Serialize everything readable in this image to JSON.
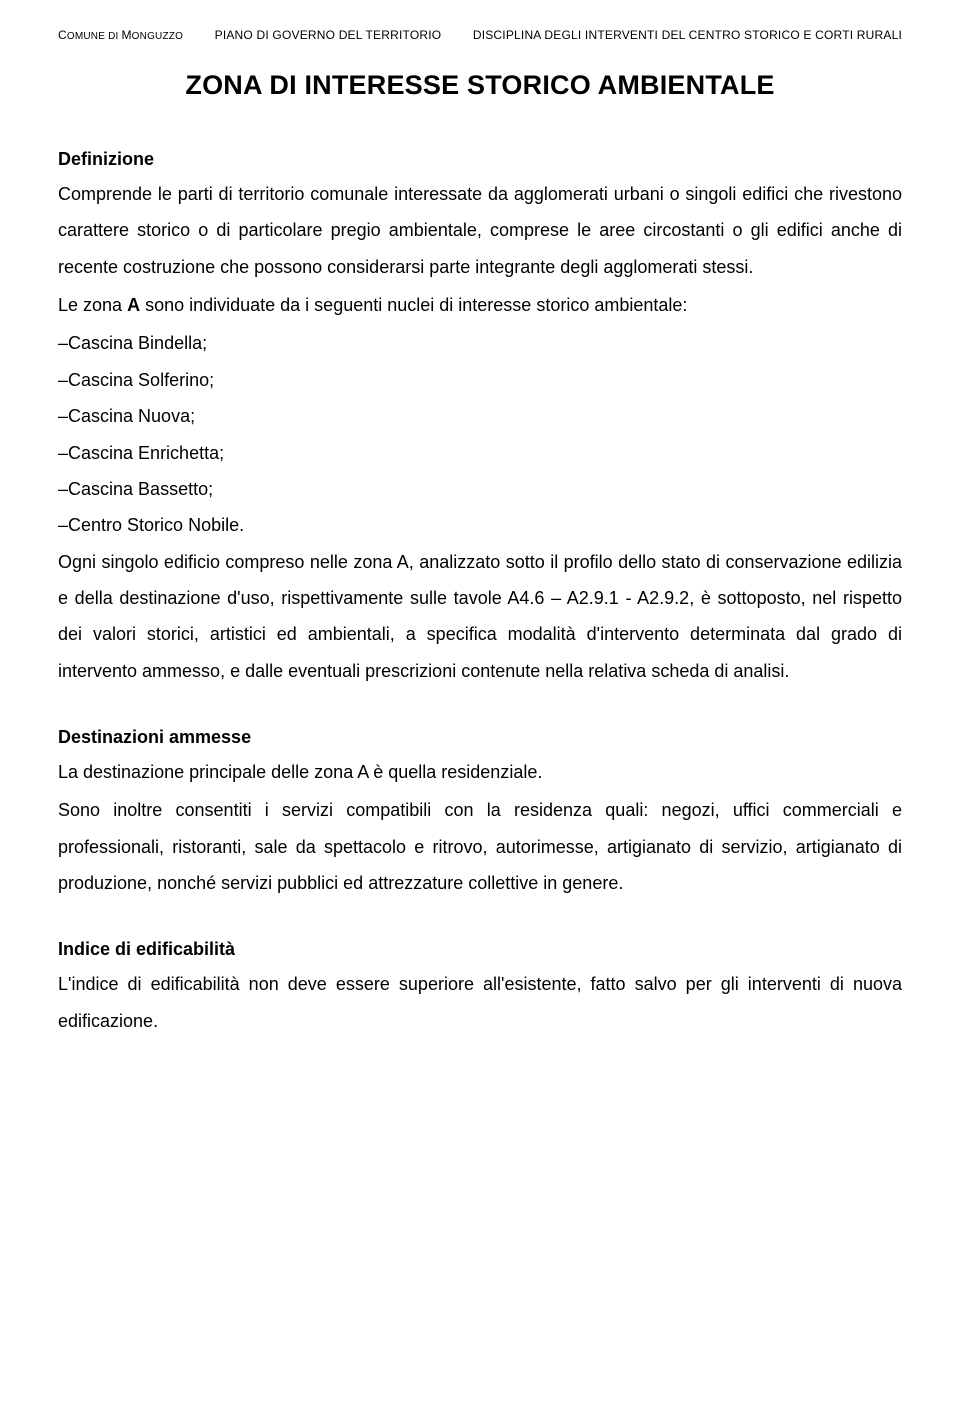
{
  "header": {
    "left_prefix": "C",
    "left_small": "OMUNE DI ",
    "left_prefix2": "M",
    "left_small2": "ONGUZZO",
    "center": "PIANO DI GOVERNO DEL TERRITORIO",
    "right": "DISCIPLINA DEGLI INTERVENTI DEL CENTRO STORICO E CORTI RURALI"
  },
  "title": "ZONA DI INTERESSE STORICO AMBIENTALE",
  "definizione": {
    "heading": "Definizione",
    "para1": "Comprende le parti di territorio comunale interessate da agglomerati urbani o singoli edifici che rivestono carattere storico o di particolare pregio ambientale, comprese le aree circostanti o gli edifici anche di recente costruzione che possono considerarsi parte integrante degli agglomerati stessi.",
    "para2_lead": "Le zona ",
    "para2_bold": "A",
    "para2_rest": " sono individuate da i seguenti nuclei di interesse storico ambientale:",
    "items": [
      "Cascina Bindella;",
      "Cascina Solferino;",
      "Cascina Nuova;",
      "Cascina Enrichetta;",
      "Cascina Bassetto;",
      "Centro Storico Nobile."
    ],
    "para3": "Ogni singolo edificio compreso nelle zona A, analizzato sotto il profilo dello stato di conservazione edilizia e della destinazione d'uso, rispettivamente sulle tavole A4.6 – A2.9.1 - A2.9.2, è sottoposto, nel rispetto dei valori storici, artistici ed ambientali, a specifica modalità d'intervento determinata dal grado di intervento ammesso, e dalle eventuali prescrizioni contenute nella relativa scheda di analisi."
  },
  "destinazioni": {
    "heading": "Destinazioni ammesse",
    "para1": "La destinazione principale delle zona A è quella residenziale.",
    "para2": "Sono inoltre consentiti i servizi compatibili con la residenza quali: negozi, uffici commerciali e professionali, ristoranti, sale da spettacolo e ritrovo, autorimesse, artigianato di servizio, artigianato di produzione, nonché servizi pubblici ed attrezzature collettive in genere."
  },
  "indice": {
    "heading": "Indice di edificabilità",
    "para1": "L'indice di edificabilità non deve essere superiore all'esistente, fatto salvo per gli interventi di nuova edificazione."
  }
}
